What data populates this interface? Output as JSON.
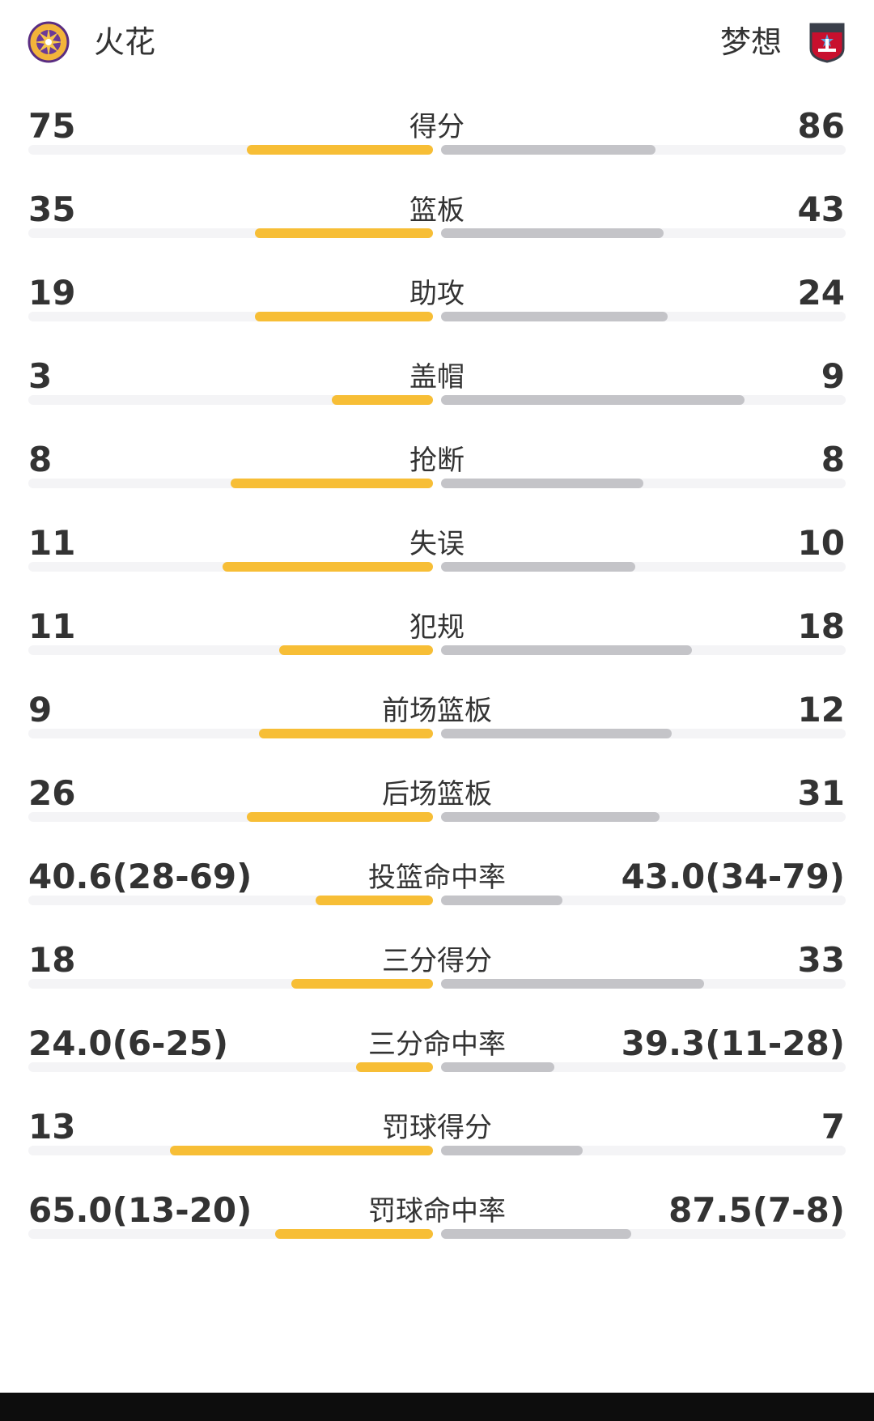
{
  "header": {
    "home_team": "火花",
    "away_team": "梦想",
    "home_logo_icon": "sparks-logo-icon",
    "away_logo_icon": "dream-logo-icon"
  },
  "colors": {
    "home_bar": "#f7be36",
    "away_bar": "#c4c4c8",
    "track": "#f4f4f6"
  },
  "stats": [
    {
      "label": "得分",
      "home": "75",
      "away": "86",
      "home_fill": 0.46,
      "away_fill": 0.53
    },
    {
      "label": "篮板",
      "home": "35",
      "away": "43",
      "home_fill": 0.44,
      "away_fill": 0.55
    },
    {
      "label": "助攻",
      "home": "19",
      "away": "24",
      "home_fill": 0.44,
      "away_fill": 0.56
    },
    {
      "label": "盖帽",
      "home": "3",
      "away": "9",
      "home_fill": 0.25,
      "away_fill": 0.75
    },
    {
      "label": "抢断",
      "home": "8",
      "away": "8",
      "home_fill": 0.5,
      "away_fill": 0.5
    },
    {
      "label": "失误",
      "home": "11",
      "away": "10",
      "home_fill": 0.52,
      "away_fill": 0.48
    },
    {
      "label": "犯规",
      "home": "11",
      "away": "18",
      "home_fill": 0.38,
      "away_fill": 0.62
    },
    {
      "label": "前场篮板",
      "home": "9",
      "away": "12",
      "home_fill": 0.43,
      "away_fill": 0.57
    },
    {
      "label": "后场篮板",
      "home": "26",
      "away": "31",
      "home_fill": 0.46,
      "away_fill": 0.54
    },
    {
      "label": "投篮命中率",
      "home": "40.6(28-69)",
      "away": "43.0(34-79)",
      "home_fill": 0.29,
      "away_fill": 0.3
    },
    {
      "label": "三分得分",
      "home": "18",
      "away": "33",
      "home_fill": 0.35,
      "away_fill": 0.65
    },
    {
      "label": "三分命中率",
      "home": "24.0(6-25)",
      "away": "39.3(11-28)",
      "home_fill": 0.19,
      "away_fill": 0.28
    },
    {
      "label": "罚球得分",
      "home": "13",
      "away": "7",
      "home_fill": 0.65,
      "away_fill": 0.35
    },
    {
      "label": "罚球命中率",
      "home": "65.0(13-20)",
      "away": "87.5(7-8)",
      "home_fill": 0.39,
      "away_fill": 0.47
    }
  ]
}
